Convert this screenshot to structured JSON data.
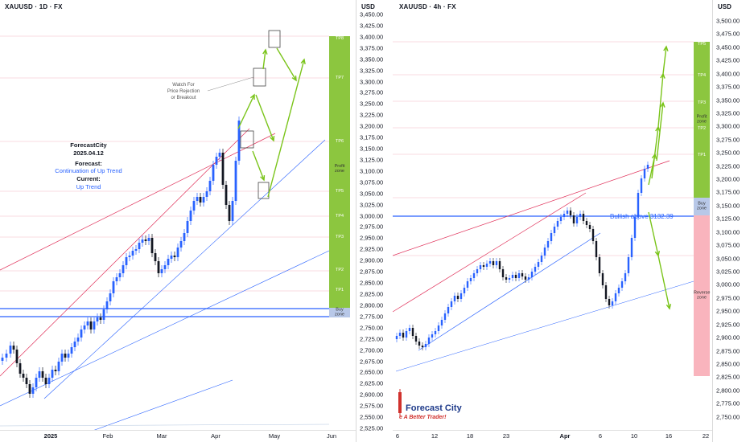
{
  "left_chart": {
    "symbol": "XAUUSD · 1D · FX",
    "currency": "USD",
    "price_ticks": [
      "3,450.00",
      "3,425.00",
      "3,400.00",
      "3,375.00",
      "3,350.00",
      "3,325.00",
      "3,300.00",
      "3,275.00",
      "3,250.00",
      "3,225.00",
      "3,200.00",
      "3,175.00",
      "3,150.00",
      "3,125.00",
      "3,100.00",
      "3,075.00",
      "3,050.00",
      "3,025.00",
      "3,000.00",
      "2,975.00",
      "2,950.00",
      "2,925.00",
      "2,900.00",
      "2,875.00",
      "2,850.00",
      "2,825.00",
      "2,800.00",
      "2,775.00",
      "2,750.00",
      "2,725.00",
      "2,700.00",
      "2,675.00",
      "2,650.00",
      "2,625.00",
      "2,600.00",
      "2,575.00",
      "2,550.00",
      "2,525.00"
    ],
    "date_ticks": [
      "2025",
      "Feb",
      "Mar",
      "Apr",
      "May",
      "Jun"
    ],
    "forecast_title": "ForecastCity",
    "forecast_date": "2025.04.12",
    "forecast_label": "Forecast:",
    "forecast_value": "Continuation of Up Trend",
    "current_label": "Current:",
    "current_value": "Up Trend",
    "watch_note_1": "Watch For",
    "watch_note_2": "Price Rejection",
    "watch_note_3": "or Breakout",
    "tp_labels": [
      "TP8",
      "TP7",
      "TP6",
      "TP5",
      "TP4",
      "TP3",
      "TP2",
      "TP1"
    ],
    "profit_zone_label_1": "Profit",
    "profit_zone_label_2": "zone",
    "buy_zone_label_1": "Buy",
    "buy_zone_label_2": "zone",
    "profit_zone_color": "#8cc63f",
    "buy_zone_color": "#b8c8e8"
  },
  "right_chart": {
    "symbol": "XAUUSD · 4h · FX",
    "currency": "USD",
    "price_ticks": [
      "3,500.00",
      "3,475.00",
      "3,450.00",
      "3,425.00",
      "3,400.00",
      "3,375.00",
      "3,350.00",
      "3,325.00",
      "3,300.00",
      "3,275.00",
      "3,250.00",
      "3,225.00",
      "3,200.00",
      "3,175.00",
      "3,150.00",
      "3,125.00",
      "3,100.00",
      "3,075.00",
      "3,050.00",
      "3,025.00",
      "3,000.00",
      "2,975.00",
      "2,950.00",
      "2,925.00",
      "2,900.00",
      "2,875.00",
      "2,850.00",
      "2,825.00",
      "2,800.00",
      "2,775.00",
      "2,750.00"
    ],
    "date_ticks": [
      "6",
      "12",
      "18",
      "23",
      "Apr",
      "6",
      "10",
      "16",
      "22"
    ],
    "breakout_label": "Bullish above 3132.39",
    "tp_labels": [
      "TP5",
      "TP4",
      "TP3",
      "TP2",
      "TP1"
    ],
    "profit_zone_label_1": "Profit",
    "profit_zone_label_2": "zone",
    "buy_zone_label_1": "Buy",
    "buy_zone_label_2": "zone",
    "reverse_zone_label_1": "Reverse",
    "reverse_zone_label_2": "zone",
    "profit_zone_color": "#8cc63f",
    "buy_zone_color": "#b8c8e8",
    "reverse_zone_color": "#f9b4bd",
    "logo_title": "Forecast City",
    "logo_tagline": "e A Better Trader!"
  },
  "colors": {
    "up_candle": "#2962ff",
    "down_candle": "#131722",
    "trend_red": "#e0315a",
    "trend_blue": "#2962ff",
    "arrow_green": "#7ac41a"
  }
}
